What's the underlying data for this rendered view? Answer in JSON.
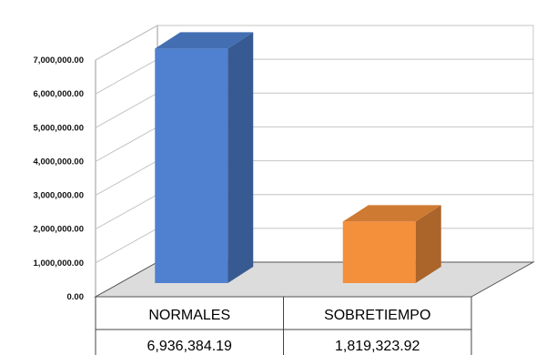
{
  "chart_data": {
    "type": "bar",
    "categories": [
      "NORMALES",
      "SOBRETIEMPO"
    ],
    "values": [
      6936384.19,
      1819323.92
    ],
    "value_labels": [
      "6,936,384.19",
      "1,819,323.92"
    ],
    "ylim": [
      0,
      7000000
    ],
    "yticks": [
      0,
      1000000,
      2000000,
      3000000,
      4000000,
      5000000,
      6000000,
      7000000
    ],
    "ytick_labels": [
      "0.00",
      "1,000,000.00",
      "2,000,000.00",
      "3,000,000.00",
      "4,000,000.00",
      "5,000,000.00",
      "6,000,000.00",
      "7,000,000.00"
    ],
    "grid": true,
    "legend": "data table below chart",
    "colors": {
      "NORMALES": "#4f81d0",
      "SOBRETIEMPO": "#f48f3c"
    }
  }
}
